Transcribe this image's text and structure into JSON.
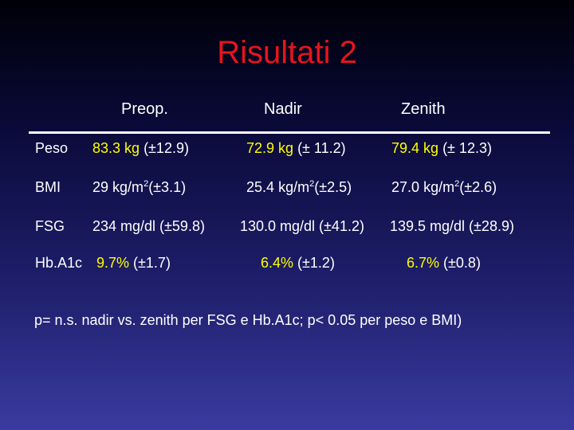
{
  "title": "Risultati 2",
  "columns": [
    "Preop.",
    "Nadir",
    "Zenith"
  ],
  "rows": {
    "peso": {
      "label": "Peso",
      "preop_val": "83.3 kg",
      "preop_sd": "(±12.9)",
      "nadir_val": "72.9 kg",
      "nadir_sd": "(± 11.2)",
      "zenith_val": "79.4 kg",
      "zenith_sd": "(± 12.3)"
    },
    "bmi": {
      "label": "BMI",
      "unit_pre": "kg/m",
      "unit_exp": "2",
      "preop_num": "29",
      "preop_sd": "(±3.1)",
      "nadir_num": "25.4",
      "nadir_sd": "(±2.5)",
      "zenith_num": "27.0",
      "zenith_sd": "(±2.6)"
    },
    "fsg": {
      "label": "FSG",
      "preop": "234 mg/dl (±59.8)",
      "nadir": "130.0 mg/dl (±41.2)",
      "zenith": "139.5 mg/dl (±28.9)"
    },
    "hba1c": {
      "label": "Hb.A1c",
      "preop_val": "9.7%",
      "preop_sd": "(±1.7)",
      "nadir_val": "6.4%",
      "nadir_sd": "(±1.2)",
      "zenith_val": "6.7%",
      "zenith_sd": "(±0.8)"
    }
  },
  "footnote": "p= n.s. nadir vs. zenith per FSG e Hb.A1c; p< 0.05 per peso e BMI)",
  "colors": {
    "title": "#e8141b",
    "highlight": "#ffff00",
    "text": "#ffffff"
  }
}
